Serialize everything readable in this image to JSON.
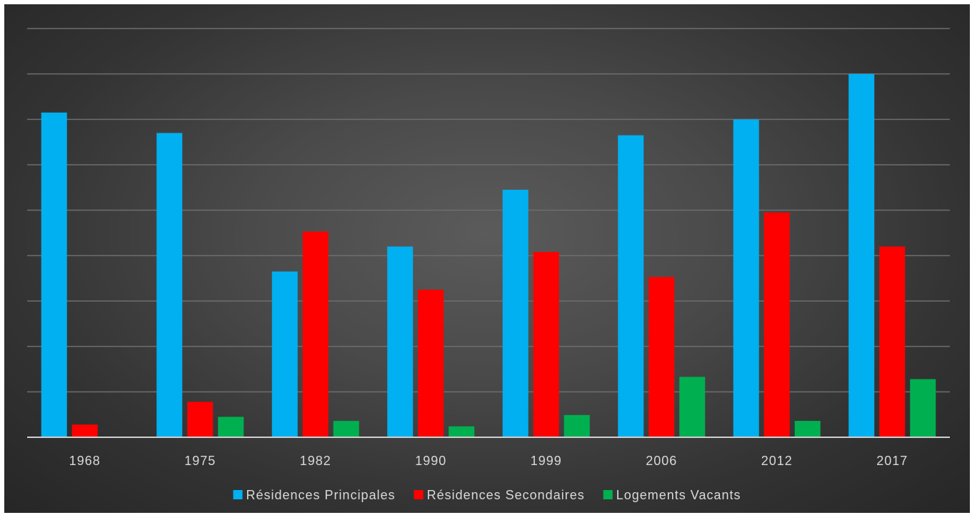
{
  "chart_data": {
    "type": "bar",
    "title": "",
    "xlabel": "",
    "ylabel": "",
    "ylim": [
      0,
      900
    ],
    "grid": true,
    "legend_position": "bottom",
    "categories": [
      "1968",
      "1975",
      "1982",
      "1990",
      "1999",
      "2006",
      "2012",
      "2017"
    ],
    "series": [
      {
        "name": "Résidences Principales",
        "color": "#00b0f0",
        "values": [
          715,
          670,
          365,
          420,
          545,
          665,
          700,
          800
        ]
      },
      {
        "name": "Résidences Secondaires",
        "color": "#ff0000",
        "values": [
          28,
          78,
          453,
          325,
          408,
          353,
          495,
          420
        ]
      },
      {
        "name": "Logements Vacants",
        "color": "#00b050",
        "values": [
          0,
          45,
          36,
          24,
          49,
          133,
          36,
          128
        ]
      }
    ]
  }
}
